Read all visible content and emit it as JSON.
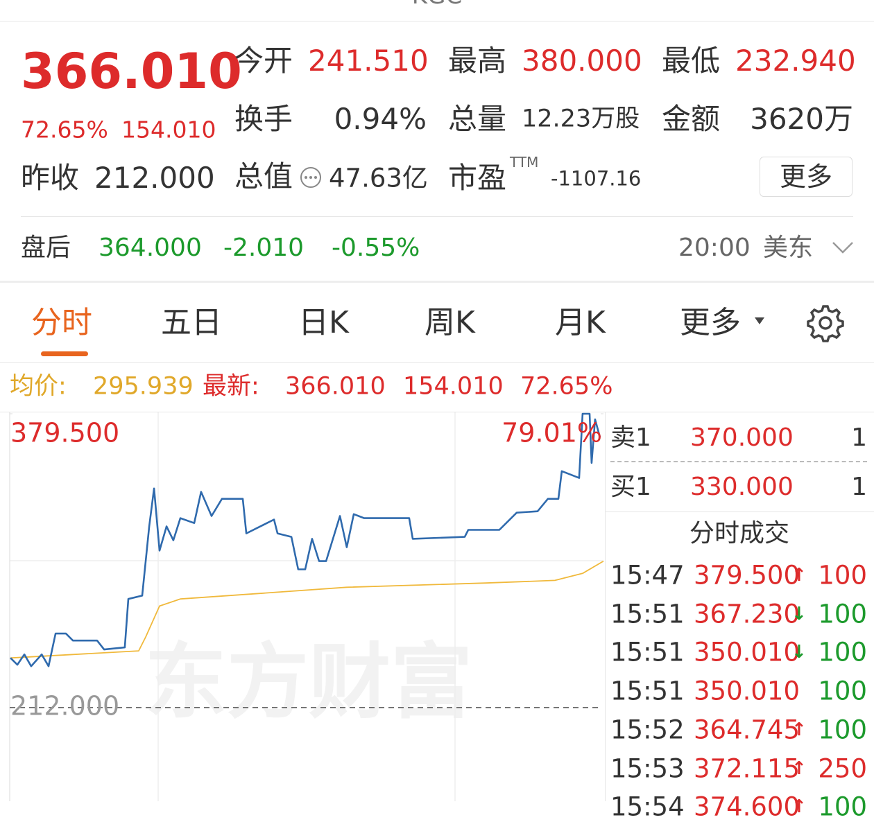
{
  "header": {
    "title": "KGC"
  },
  "quote": {
    "price": "366.010",
    "change_percent": "72.65%",
    "change": "154.010",
    "prev_close_label": "昨收",
    "prev_close": "212.000",
    "fields": [
      {
        "label": "今开",
        "value": "241.510"
      },
      {
        "label": "最高",
        "value": "380.000"
      },
      {
        "label": "最低",
        "value": "232.940"
      },
      {
        "label": "换手",
        "value": "0.94%"
      },
      {
        "label": "总量",
        "value": "12.23万股"
      },
      {
        "label": "金额",
        "value": "3620万"
      },
      {
        "label": "总值",
        "value": "47.63亿"
      },
      {
        "label": "市盈",
        "value": "-1107.16",
        "suffix": "TTM"
      }
    ],
    "more_button": "更多"
  },
  "after_hours": {
    "label": "盘后",
    "price": "364.000",
    "change": "-2.010",
    "change_percent": "-0.55%",
    "time": "20:00",
    "market": "美东"
  },
  "tabs": [
    "分时",
    "五日",
    "日K",
    "周K",
    "月K",
    "更多"
  ],
  "chart_header": {
    "avg_label": "均价:",
    "avg": "295.939",
    "latest_label": "最新:",
    "latest": "366.010",
    "change": "154.010",
    "change_percent": "72.65%"
  },
  "chart_data": {
    "type": "line",
    "watermark": "东方财富",
    "xlim": [
      0,
      390
    ],
    "ylim": [
      159,
      379.5
    ],
    "y2lim": [
      -25,
      79.01
    ],
    "yticks": [
      {
        "value": 379.5,
        "label": "379.500"
      },
      {
        "value": 212,
        "label": "212.000"
      }
    ],
    "y2ticks": [
      {
        "value": 79.01,
        "label": "79.01%"
      }
    ],
    "xgrid": [
      97.5,
      292.5
    ],
    "ygrid": [
      295.75
    ],
    "series": [
      {
        "color": "#2f6aad",
        "x": [
          0.5,
          5,
          9.6,
          14.1,
          21,
          25.5,
          30.1,
          36.9,
          41.5,
          57.4,
          62,
          75.6,
          77.9,
          87,
          91.6,
          94.8,
          98.4,
          103,
          107.5,
          112.1,
          121.2,
          125.7,
          132.6,
          139.4,
          153.1,
          155.4,
          173.6,
          175.9,
          185,
          189.5,
          194.1,
          198.6,
          203.2,
          207.8,
          216.9,
          221.4,
          226,
          232.8,
          262.4,
          264.7,
          298.9,
          301.2,
          321.6,
          333,
          346.7,
          353.5,
          360.4,
          362.6,
          374,
          376.3,
          380.9,
          382.2,
          384.5,
          387.7
        ],
        "values": [
          240.3,
          236.4,
          242.3,
          235.6,
          242.3,
          235.6,
          254.2,
          254.2,
          250.2,
          250.2,
          245.1,
          246.3,
          273.9,
          275.8,
          315.3,
          336.9,
          301.5,
          315.3,
          307.4,
          320.0,
          317.2,
          335.0,
          321.2,
          331.0,
          331.0,
          311.3,
          319.2,
          311.3,
          309.3,
          290.8,
          290.8,
          308.2,
          295.5,
          295.5,
          321.2,
          303.4,
          322.3,
          320.0,
          320.0,
          308.2,
          309.3,
          313.3,
          313.3,
          323.1,
          323.9,
          331.0,
          331.0,
          346.8,
          342.9,
          379.5,
          379.5,
          351.5,
          376.3,
          366.01
        ]
      },
      {
        "color": "#f0b93c",
        "x": [
          0.5,
          84.7,
          89.3,
          98.4,
          112.1,
          175.9,
          221.4,
          312.5,
          358.1,
          376.3,
          390
        ],
        "values": [
          240.3,
          244.3,
          252.2,
          269.9,
          273.9,
          277.8,
          280.6,
          283.0,
          284.5,
          288.5,
          295.5
        ]
      }
    ]
  },
  "order_book": {
    "asks": [
      {
        "label": "卖1",
        "price": "370.000",
        "volume": "1"
      }
    ],
    "bids": [
      {
        "label": "买1",
        "price": "330.000",
        "volume": "1"
      }
    ]
  },
  "trades": {
    "title": "分时成交",
    "rows": [
      {
        "time": "15:47",
        "price": "379.500",
        "arrow": "↑",
        "volume": "100"
      },
      {
        "time": "15:51",
        "price": "367.230",
        "arrow": "↓",
        "volume": "100"
      },
      {
        "time": "15:51",
        "price": "350.010",
        "arrow": "↓",
        "volume": "100"
      },
      {
        "time": "15:51",
        "price": "350.010",
        "volume": "100"
      },
      {
        "time": "15:52",
        "price": "364.745",
        "arrow": "↑",
        "volume": "100"
      },
      {
        "time": "15:53",
        "price": "372.115",
        "arrow": "↑",
        "volume": "250"
      },
      {
        "time": "15:54",
        "price": "374.600",
        "arrow": "↑",
        "volume": "100"
      }
    ]
  }
}
